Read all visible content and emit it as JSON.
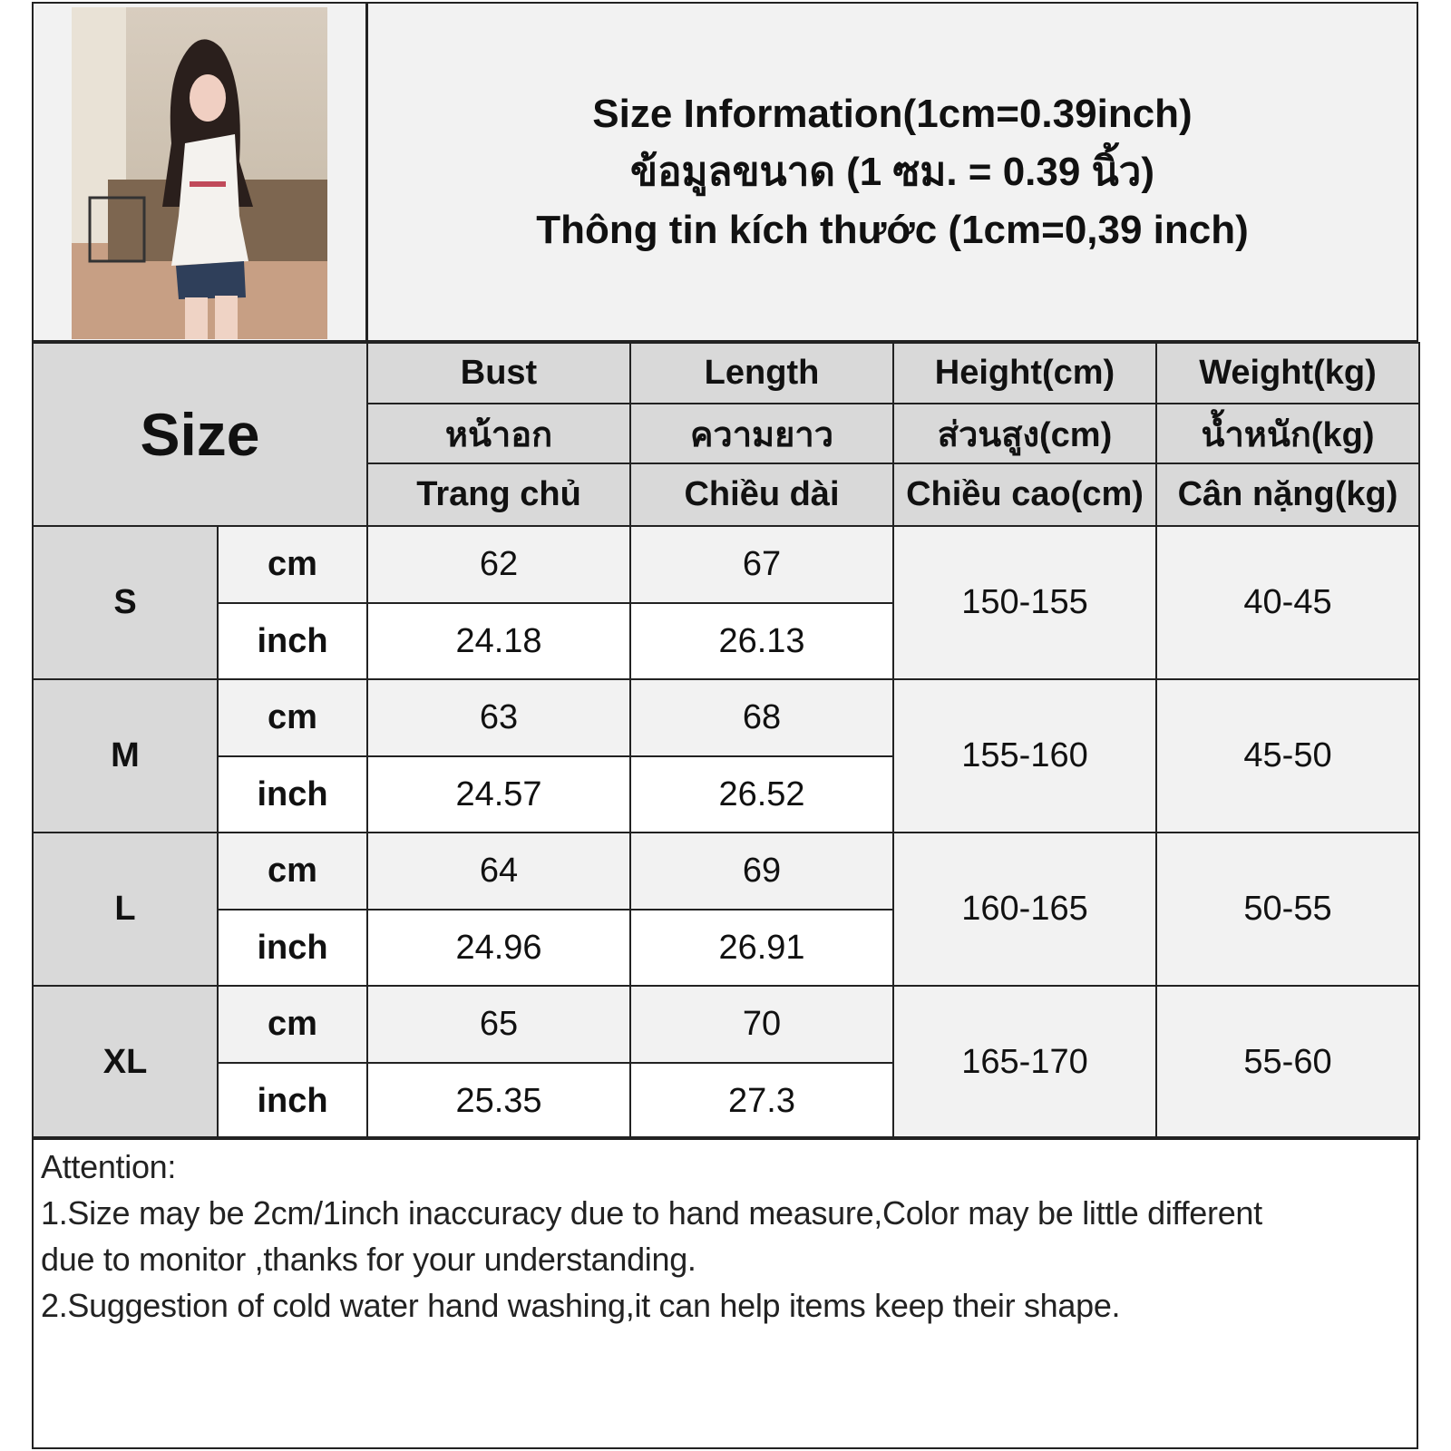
{
  "title": {
    "english": "Size Information(1cm=0.39inch)",
    "thai": "ข้อมูลขนาด (1 ซม. = 0.39 นิ้ว)",
    "vietnamese": "Thông tin kích thước (1cm=0,39 inch)"
  },
  "table": {
    "size_header": "Size",
    "columns": [
      {
        "en": "Bust",
        "th": "หน้าอก",
        "vi": "Trang chủ"
      },
      {
        "en": "Length",
        "th": "ความยาว",
        "vi": "Chiều dài"
      },
      {
        "en": "Height(cm)",
        "th": "ส่วนสูง(cm)",
        "vi": "Chiều cao(cm)"
      },
      {
        "en": "Weight(kg)",
        "th": "น้ำหนัก(kg)",
        "vi": "Cân nặng(kg)"
      }
    ],
    "unit_cm": "cm",
    "unit_inch": "inch",
    "rows": [
      {
        "size": "S",
        "bust_cm": "62",
        "length_cm": "67",
        "bust_inch": "24.18",
        "length_inch": "26.13",
        "height": "150-155",
        "weight": "40-45"
      },
      {
        "size": "M",
        "bust_cm": "63",
        "length_cm": "68",
        "bust_inch": "24.57",
        "length_inch": "26.52",
        "height": "155-160",
        "weight": "45-50"
      },
      {
        "size": "L",
        "bust_cm": "64",
        "length_cm": "69",
        "bust_inch": "24.96",
        "length_inch": "26.91",
        "height": "160-165",
        "weight": "50-55"
      },
      {
        "size": "XL",
        "bust_cm": "65",
        "length_cm": "70",
        "bust_inch": "25.35",
        "length_inch": "27.3",
        "height": "165-170",
        "weight": "55-60"
      }
    ]
  },
  "notes": {
    "heading": "Attention:",
    "line1a": "1.Size may be 2cm/1inch inaccuracy due to hand measure,Color may be little different",
    "line1b": "due to monitor ,thanks for your understanding.",
    "line2": "2.Suggestion of cold water hand washing,it can help items keep their shape."
  },
  "colors": {
    "header_gray": "#d9d9d9",
    "light_gray": "#f2f2f2",
    "border": "#222222"
  }
}
